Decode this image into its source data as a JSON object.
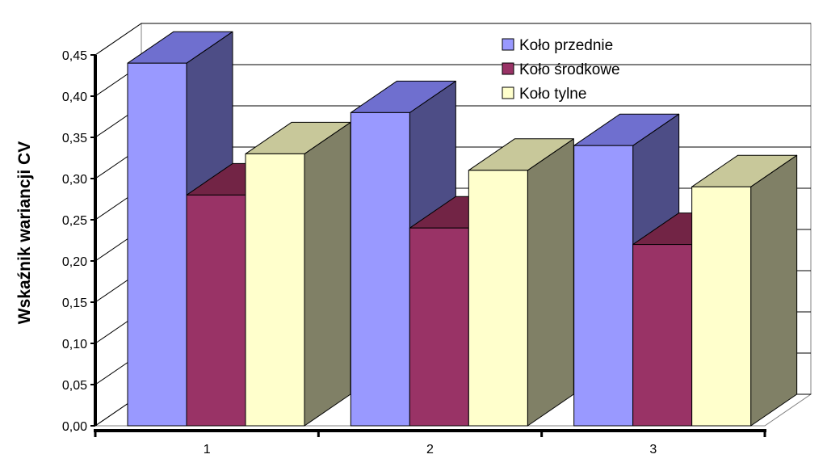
{
  "chart_data": {
    "type": "bar",
    "style": "3d-clustered",
    "title": "",
    "xlabel": "",
    "ylabel": "Wskaźnik wariancji CV",
    "categories": [
      "1",
      "2",
      "3"
    ],
    "ylim": [
      0,
      0.45
    ],
    "yticks": [
      "0,00",
      "0,05",
      "0,10",
      "0,15",
      "0,20",
      "0,25",
      "0,30",
      "0,35",
      "0,40",
      "0,45"
    ],
    "grid": true,
    "legend_position": "top-right",
    "series": [
      {
        "name": "Koło przednie",
        "values": [
          0.44,
          0.38,
          0.34
        ],
        "color": "#9999ff",
        "top_color": "#6f6fcf",
        "side_color": "#4d4d86"
      },
      {
        "name": "Koło środkowe",
        "values": [
          0.28,
          0.24,
          0.22
        ],
        "color": "#993366",
        "top_color": "#722445",
        "side_color": "#5a1d3c"
      },
      {
        "name": "Koło tylne",
        "values": [
          0.33,
          0.31,
          0.29
        ],
        "color": "#ffffcc",
        "top_color": "#c8c89a",
        "side_color": "#808066"
      }
    ]
  }
}
